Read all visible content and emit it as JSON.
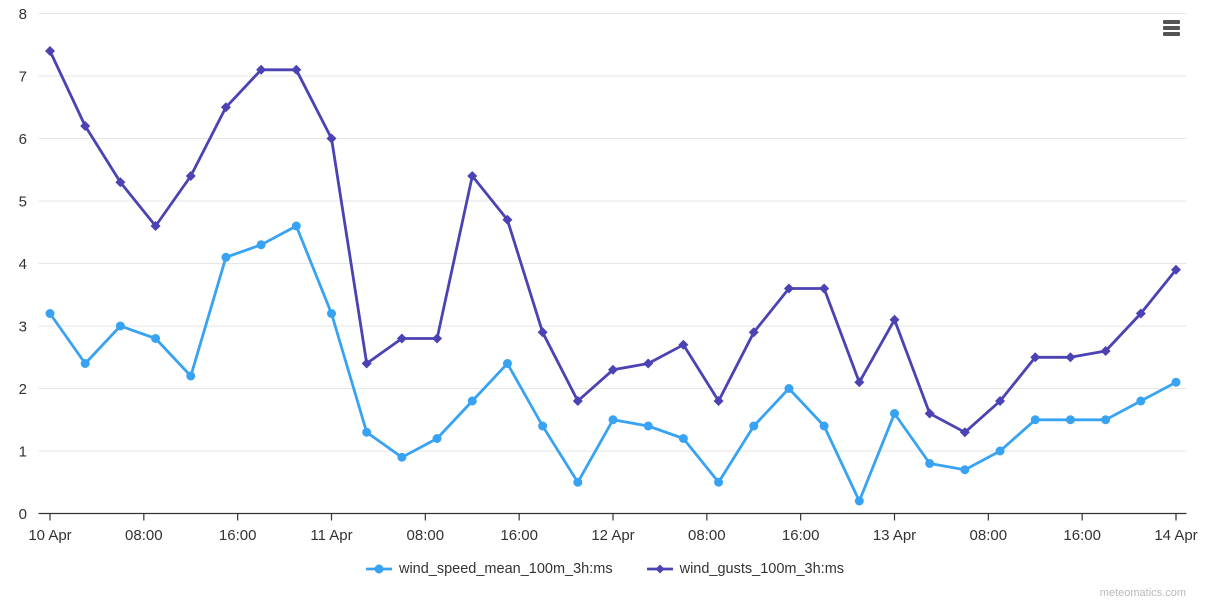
{
  "chart": {
    "watermark": "meteomatics.com",
    "menu_tooltip": "Chart context menu"
  },
  "colors": {
    "background": "#ffffff",
    "grid": "#e6e6e6",
    "axis": "#333333",
    "tick": "#333333",
    "label": "#333333",
    "legend_text": "#333333",
    "watermark": "#b9b9b9",
    "menu_icon": "#545454",
    "series_wind_speed": "#38A3F3",
    "series_wind_gusts": "#4B42B4"
  },
  "chart_data": {
    "type": "line",
    "title": "",
    "xlabel": "",
    "ylabel": "",
    "ylim": [
      0,
      8
    ],
    "yticks": [
      0,
      1,
      2,
      3,
      4,
      5,
      6,
      7,
      8
    ],
    "grid": "horizontal",
    "legend_position": "bottom-center",
    "x_range_hours": [
      0,
      96
    ],
    "point_interval_hours": 3,
    "x_start": "10 Apr 00:00",
    "x_end": "14 Apr 00:00",
    "xticks": [
      {
        "hour": 0,
        "label": "10 Apr"
      },
      {
        "hour": 8,
        "label": "08:00"
      },
      {
        "hour": 16,
        "label": "16:00"
      },
      {
        "hour": 24,
        "label": "11 Apr"
      },
      {
        "hour": 32,
        "label": "08:00"
      },
      {
        "hour": 40,
        "label": "16:00"
      },
      {
        "hour": 48,
        "label": "12 Apr"
      },
      {
        "hour": 56,
        "label": "08:00"
      },
      {
        "hour": 64,
        "label": "16:00"
      },
      {
        "hour": 72,
        "label": "13 Apr"
      },
      {
        "hour": 80,
        "label": "08:00"
      },
      {
        "hour": 88,
        "label": "16:00"
      },
      {
        "hour": 96,
        "label": "14 Apr"
      }
    ],
    "series": [
      {
        "name": "wind_speed_mean_100m_3h:ms",
        "color": "#38A3F3",
        "marker": "circle",
        "values": [
          3.2,
          2.4,
          3.0,
          2.8,
          2.2,
          4.1,
          4.3,
          4.6,
          3.2,
          1.3,
          0.9,
          1.2,
          1.8,
          2.4,
          1.4,
          0.5,
          1.5,
          1.4,
          1.2,
          0.5,
          1.4,
          2.0,
          1.4,
          0.2,
          1.6,
          0.8,
          0.7,
          1.0,
          1.5,
          1.5,
          1.5,
          1.8,
          2.1
        ]
      },
      {
        "name": "wind_gusts_100m_3h:ms",
        "color": "#4B42B4",
        "marker": "diamond",
        "values": [
          7.4,
          6.2,
          5.3,
          4.6,
          5.4,
          6.5,
          7.1,
          7.1,
          6.0,
          2.4,
          2.8,
          2.8,
          5.4,
          4.7,
          2.9,
          1.8,
          2.3,
          2.4,
          2.7,
          1.8,
          2.9,
          3.6,
          3.6,
          2.1,
          3.1,
          1.6,
          1.3,
          1.8,
          2.5,
          2.5,
          2.6,
          3.2,
          3.9
        ]
      }
    ]
  }
}
